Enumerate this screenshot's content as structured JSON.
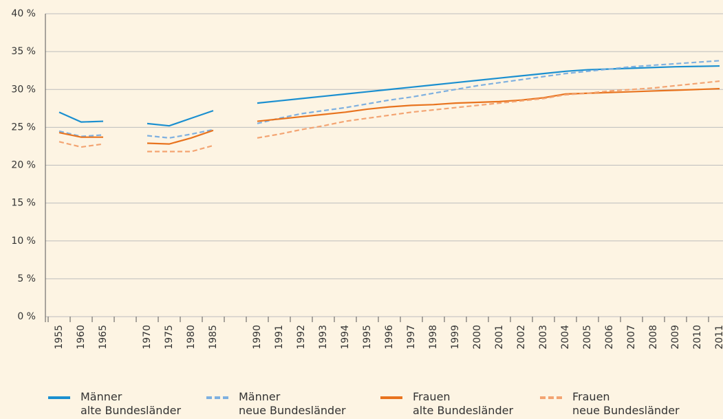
{
  "chart_data": {
    "type": "line",
    "categories": [
      "1955",
      "1960",
      "1965",
      null,
      "1970",
      "1975",
      "1980",
      "1985",
      null,
      "1990",
      "1991",
      "1992",
      "1993",
      "1994",
      "1995",
      "1996",
      "1997",
      "1998",
      "1999",
      "2000",
      "2001",
      "2002",
      "2003",
      "2004",
      "2005",
      "2006",
      "2007",
      "2008",
      "2009",
      "2010",
      "2011"
    ],
    "ylim": [
      0,
      40
    ],
    "yticks": [
      {
        "value": 0,
        "label": "0 %"
      },
      {
        "value": 5,
        "label": "5 %"
      },
      {
        "value": 10,
        "label": "10 %"
      },
      {
        "value": 15,
        "label": "15 %"
      },
      {
        "value": 20,
        "label": "20 %"
      },
      {
        "value": 25,
        "label": "25 %"
      },
      {
        "value": 30,
        "label": "30 %"
      },
      {
        "value": 35,
        "label": "35 %"
      },
      {
        "value": 40,
        "label": "40 %"
      }
    ],
    "grid": true,
    "series": [
      {
        "name": "Männer\nalte Bundesländer",
        "color": "#1a8fd0",
        "dashed": false,
        "values": [
          27.0,
          25.7,
          25.8,
          null,
          25.5,
          25.2,
          26.2,
          27.2,
          null,
          28.2,
          28.5,
          28.8,
          29.1,
          29.4,
          29.7,
          30.0,
          30.3,
          30.6,
          30.9,
          31.2,
          31.5,
          31.8,
          32.1,
          32.4,
          32.6,
          32.7,
          32.8,
          32.9,
          33.0,
          33.05,
          33.1
        ]
      },
      {
        "name": "Männer\nneue Bundesländer",
        "color": "#7eb0e0",
        "dashed": true,
        "values": [
          24.5,
          23.8,
          24.0,
          null,
          23.9,
          23.6,
          24.1,
          24.7,
          null,
          25.5,
          26.2,
          26.8,
          27.2,
          27.6,
          28.1,
          28.6,
          29.0,
          29.5,
          30.0,
          30.5,
          30.9,
          31.3,
          31.7,
          32.1,
          32.4,
          32.7,
          33.0,
          33.2,
          33.4,
          33.6,
          33.8
        ]
      },
      {
        "name": "Frauen\nalte Bundesländer",
        "color": "#e8731e",
        "dashed": false,
        "values": [
          24.3,
          23.7,
          23.7,
          null,
          22.9,
          22.8,
          23.6,
          24.6,
          null,
          25.8,
          26.1,
          26.4,
          26.7,
          27.0,
          27.4,
          27.7,
          27.9,
          28.0,
          28.2,
          28.3,
          28.4,
          28.6,
          28.9,
          29.4,
          29.5,
          29.6,
          29.7,
          29.8,
          29.9,
          30.0,
          30.1
        ]
      },
      {
        "name": "Frauen\nneue Bundesländer",
        "color": "#f3a472",
        "dashed": true,
        "values": [
          23.1,
          22.4,
          22.8,
          null,
          21.8,
          21.8,
          21.8,
          22.6,
          null,
          23.6,
          24.1,
          24.7,
          25.2,
          25.8,
          26.2,
          26.6,
          27.0,
          27.3,
          27.6,
          27.9,
          28.2,
          28.5,
          28.8,
          29.3,
          29.5,
          29.8,
          30.0,
          30.2,
          30.5,
          30.8,
          31.1
        ]
      }
    ],
    "legend": "bottom"
  }
}
